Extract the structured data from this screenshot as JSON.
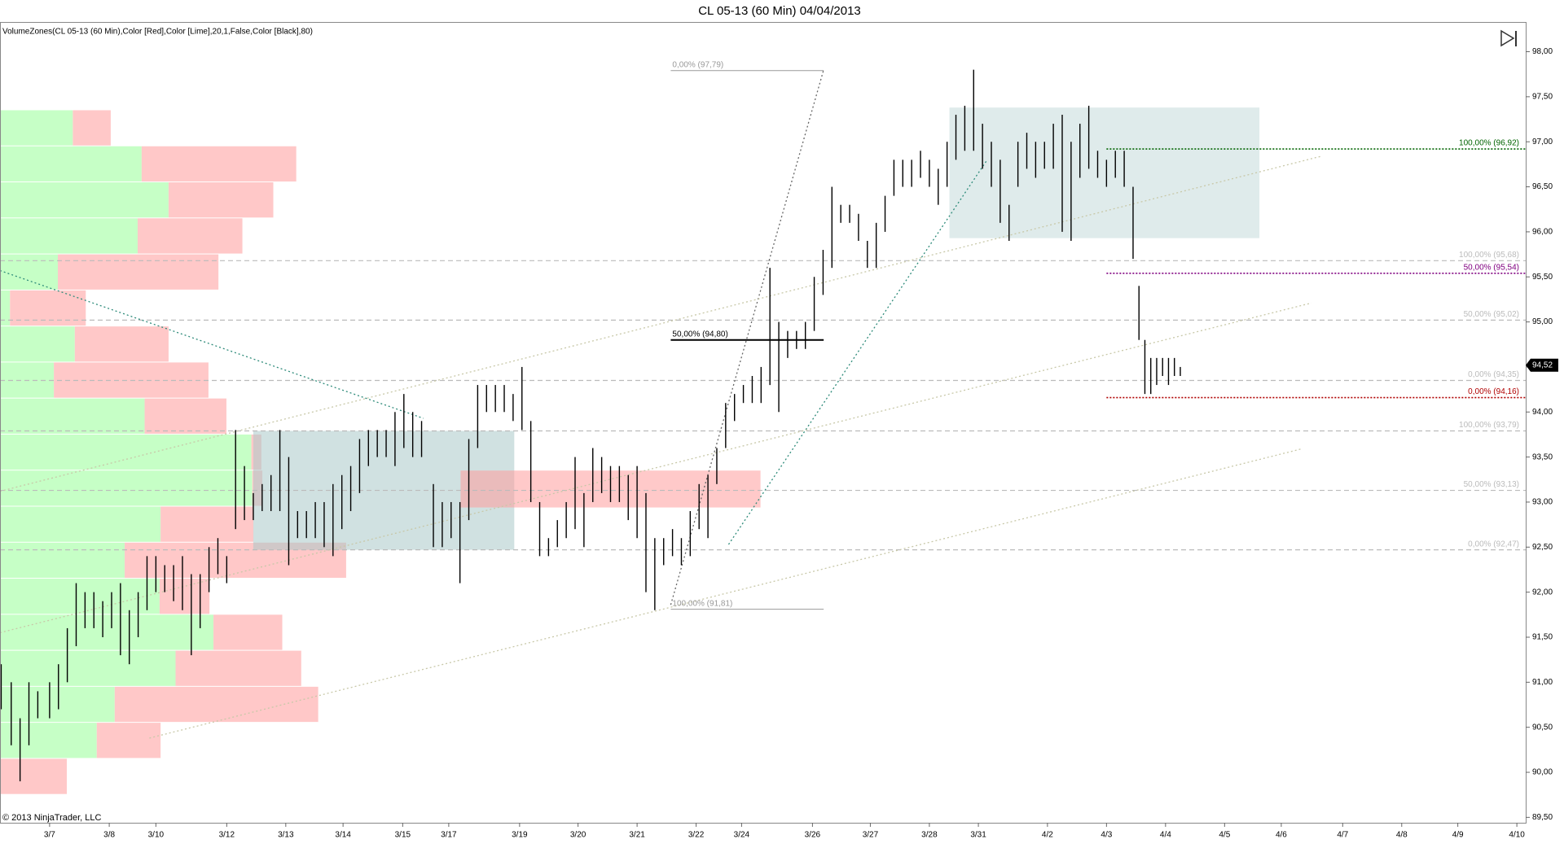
{
  "chart_data": {
    "type": "ohlc",
    "title": "CL 05-13 (60 Min)  04/04/2013",
    "indicator_label": "VolumeZones(CL 05-13 (60 Min),Color [Red],Color [Lime],20,1,False,Color [Black],80)",
    "copyright": "© 2013 NinjaTrader, LLC",
    "color": "#000000",
    "x": [
      -0.82,
      -0.65,
      -0.5,
      -0.35,
      -0.2,
      0.0,
      0.15,
      0.3,
      0.45,
      0.6,
      0.75,
      0.9,
      1.05,
      1.2,
      1.35,
      1.5,
      1.65,
      1.8,
      1.95,
      2.1,
      2.25,
      2.4,
      2.55,
      2.7,
      2.85,
      3.0,
      3.15,
      3.3,
      3.45,
      3.6,
      3.75,
      3.9,
      4.05,
      4.2,
      4.35,
      4.5,
      4.65,
      4.8,
      4.95,
      5.1,
      5.25,
      5.4,
      5.55,
      5.7,
      5.85,
      6.0,
      6.15,
      6.3,
      6.5,
      6.65,
      6.8,
      6.95,
      7.1,
      7.25,
      7.4,
      7.55,
      7.7,
      7.85,
      8.0,
      8.15,
      8.3,
      8.45,
      8.6,
      8.75,
      8.9,
      9.05,
      9.2,
      9.35,
      9.5,
      9.65,
      9.8,
      9.95,
      10.1,
      10.25,
      10.4,
      10.55,
      10.7,
      10.85,
      11.0,
      11.15,
      11.3,
      11.45,
      11.6,
      11.75,
      11.9,
      12.05,
      12.2,
      12.35,
      12.5,
      12.65,
      12.8,
      12.95,
      13.1,
      13.25,
      13.4,
      13.55,
      13.7,
      13.85,
      14.0,
      14.15,
      14.3,
      14.45,
      14.6,
      14.75,
      14.9,
      15.05,
      15.2,
      15.35,
      15.5,
      15.65,
      15.8,
      15.95,
      16.1,
      16.25,
      16.4,
      16.55,
      16.7,
      16.85,
      17.0,
      17.15,
      17.3,
      17.45,
      17.6,
      17.75,
      17.9,
      18.05,
      18.2,
      18.35,
      18.45,
      18.55,
      18.65,
      18.75,
      18.85,
      18.95,
      19.05,
      19.15
    ],
    "high": [
      91.2,
      91.0,
      90.6,
      91.0,
      90.9,
      91.0,
      91.2,
      91.6,
      92.1,
      92.0,
      92.0,
      91.9,
      92.0,
      92.1,
      91.8,
      92.0,
      92.4,
      92.4,
      92.3,
      92.3,
      92.4,
      92.2,
      92.2,
      92.5,
      92.6,
      92.4,
      93.8,
      93.4,
      93.1,
      93.2,
      93.3,
      93.8,
      93.5,
      92.9,
      92.9,
      93.0,
      93.0,
      93.2,
      93.3,
      93.4,
      93.7,
      93.8,
      93.8,
      93.8,
      94.0,
      94.2,
      94.0,
      93.9,
      93.2,
      93.0,
      93.0,
      93.0,
      93.7,
      94.3,
      94.3,
      94.3,
      94.3,
      94.2,
      94.5,
      93.9,
      93.0,
      92.6,
      92.8,
      93.0,
      93.5,
      93.1,
      93.6,
      93.5,
      93.4,
      93.4,
      93.3,
      93.4,
      93.1,
      92.6,
      92.6,
      92.7,
      92.6,
      92.9,
      93.2,
      93.3,
      93.6,
      94.1,
      94.2,
      94.3,
      94.4,
      94.5,
      95.6,
      95.0,
      94.9,
      94.9,
      95.0,
      95.5,
      95.8,
      96.5,
      96.3,
      96.3,
      96.2,
      95.9,
      96.1,
      96.4,
      96.8,
      96.8,
      96.8,
      96.9,
      96.8,
      96.7,
      97.0,
      97.3,
      97.4,
      97.8,
      97.2,
      97.0,
      96.8,
      96.3,
      97.0,
      97.1,
      97.0,
      97.0,
      97.2,
      97.3,
      97.0,
      97.2,
      97.4,
      96.9,
      96.8,
      96.9,
      96.9,
      96.5,
      95.4,
      94.8,
      94.6,
      94.6,
      94.6,
      94.6,
      94.6,
      94.5
    ],
    "low": [
      90.7,
      90.3,
      89.9,
      90.3,
      90.6,
      90.6,
      90.7,
      91.0,
      91.4,
      91.6,
      91.6,
      91.5,
      91.6,
      91.3,
      91.2,
      91.5,
      91.8,
      92.0,
      92.0,
      91.9,
      91.8,
      91.3,
      91.6,
      92.0,
      92.2,
      92.1,
      92.7,
      92.8,
      92.8,
      92.9,
      92.9,
      92.9,
      92.3,
      92.6,
      92.6,
      92.6,
      92.5,
      92.4,
      92.7,
      92.9,
      93.1,
      93.4,
      93.5,
      93.5,
      93.4,
      93.6,
      93.5,
      93.5,
      92.5,
      92.5,
      92.6,
      92.1,
      92.8,
      93.6,
      94.0,
      94.0,
      94.0,
      93.9,
      93.8,
      93.0,
      92.4,
      92.4,
      92.5,
      92.6,
      92.7,
      92.5,
      93.0,
      93.1,
      93.0,
      93.0,
      92.8,
      92.6,
      92.0,
      91.8,
      92.3,
      92.4,
      92.3,
      92.4,
      92.7,
      92.6,
      93.2,
      93.6,
      93.9,
      94.1,
      94.1,
      94.1,
      94.3,
      94.0,
      94.6,
      94.7,
      94.7,
      94.9,
      95.3,
      95.6,
      96.1,
      96.1,
      95.9,
      95.6,
      95.6,
      96.0,
      96.4,
      96.5,
      96.5,
      96.6,
      96.5,
      96.3,
      96.5,
      96.8,
      96.9,
      96.9,
      96.7,
      96.5,
      96.1,
      95.9,
      96.5,
      96.7,
      96.6,
      96.7,
      96.7,
      96.0,
      95.9,
      96.6,
      96.7,
      96.6,
      96.5,
      96.6,
      96.5,
      95.7,
      94.8,
      94.2,
      94.2,
      94.3,
      94.4,
      94.3,
      94.4,
      94.4
    ],
    "xlim": [
      -0.84,
      25.0
    ],
    "ylim": [
      89.44,
      98.33
    ],
    "xticks": [
      {
        "value": 0,
        "label": "3/7"
      },
      {
        "value": 1.01,
        "label": "3/8"
      },
      {
        "value": 1.8,
        "label": "3/10"
      },
      {
        "value": 3.0,
        "label": "3/12"
      },
      {
        "value": 4.0,
        "label": "3/13"
      },
      {
        "value": 4.97,
        "label": "3/14"
      },
      {
        "value": 5.98,
        "label": "3/15"
      },
      {
        "value": 6.76,
        "label": "3/17"
      },
      {
        "value": 7.96,
        "label": "3/19"
      },
      {
        "value": 8.95,
        "label": "3/20"
      },
      {
        "value": 9.95,
        "label": "3/21"
      },
      {
        "value": 10.95,
        "label": "3/22"
      },
      {
        "value": 11.72,
        "label": "3/24"
      },
      {
        "value": 12.92,
        "label": "3/26"
      },
      {
        "value": 13.9,
        "label": "3/27"
      },
      {
        "value": 14.9,
        "label": "3/28"
      },
      {
        "value": 15.73,
        "label": "3/31"
      },
      {
        "value": 16.9,
        "label": "4/2"
      },
      {
        "value": 17.9,
        "label": "4/3"
      },
      {
        "value": 18.9,
        "label": "4/4"
      },
      {
        "value": 19.9,
        "label": "4/5"
      },
      {
        "value": 20.86,
        "label": "4/6"
      },
      {
        "value": 21.9,
        "label": "4/7"
      },
      {
        "value": 22.9,
        "label": "4/8"
      },
      {
        "value": 23.85,
        "label": "4/9"
      },
      {
        "value": 24.85,
        "label": "4/10"
      }
    ],
    "yticks": [
      {
        "value": 89.5,
        "label": "89,50"
      },
      {
        "value": 90.0,
        "label": "90,00"
      },
      {
        "value": 90.5,
        "label": "90,50"
      },
      {
        "value": 91.0,
        "label": "91,00"
      },
      {
        "value": 91.5,
        "label": "91,50"
      },
      {
        "value": 92.0,
        "label": "92,00"
      },
      {
        "value": 92.5,
        "label": "92,50"
      },
      {
        "value": 93.0,
        "label": "93,00"
      },
      {
        "value": 93.5,
        "label": "93,50"
      },
      {
        "value": 94.0,
        "label": "94,00"
      },
      {
        "value": 94.5,
        "label": "94,50"
      },
      {
        "value": 95.0,
        "label": "95,00"
      },
      {
        "value": 95.5,
        "label": "95,50"
      },
      {
        "value": 96.0,
        "label": "96,00"
      },
      {
        "value": 96.5,
        "label": "96,50"
      },
      {
        "value": 97.0,
        "label": "97,00"
      },
      {
        "value": 97.5,
        "label": "97,50"
      },
      {
        "value": 98.0,
        "label": "98,00"
      }
    ],
    "volume_zones": {
      "bounds": [
        89.75,
        90.15,
        90.55,
        90.95,
        91.35,
        91.75,
        92.15,
        92.55,
        92.95,
        93.35,
        93.75,
        94.15,
        94.55,
        94.95,
        95.35,
        95.75,
        96.15,
        96.55,
        96.95,
        97.35
      ],
      "buy": [
        0,
        97,
        115,
        176,
        214,
        160,
        125,
        161,
        253,
        252,
        145,
        54,
        75,
        10,
        58,
        138,
        169,
        142,
        73
      ],
      "sell": [
        67,
        64,
        204,
        126,
        69,
        50,
        222,
        93,
        10,
        10,
        82,
        155,
        94,
        76,
        161,
        105,
        105,
        155,
        38
      ],
      "buy_color": "#c6ffc6",
      "sell_color": "#ffc8c8"
    },
    "rectangles": [
      {
        "x": [
          15.24,
          20.49
        ],
        "y": [
          95.93,
          97.38
        ],
        "color": "#c5dada"
      },
      {
        "x": [
          3.45,
          7.87
        ],
        "y": [
          92.47,
          93.79
        ],
        "color": "#a9c9c9"
      },
      {
        "x": [
          6.96,
          12.04
        ],
        "y": [
          92.94,
          93.35
        ],
        "color": "#ff9c9c"
      }
    ],
    "trend_lines": [
      {
        "x": [
          -0.84,
          6.33
        ],
        "y": [
          95.57,
          93.93
        ],
        "color": "#2e8b7a"
      },
      {
        "x": [
          11.5,
          15.88
        ],
        "y": [
          92.53,
          96.8
        ],
        "color": "#2e8b7a"
      },
      {
        "x": [
          10.52,
          13.11
        ],
        "y": [
          91.86,
          97.8
        ],
        "color": "#666666"
      },
      {
        "x": [
          -0.84,
          21.54
        ],
        "y": [
          93.12,
          96.84
        ],
        "color": "#c8c8a8"
      },
      {
        "x": [
          -0.84,
          21.37
        ],
        "y": [
          91.55,
          95.21
        ],
        "color": "#c8c8a8"
      },
      {
        "x": [
          1.69,
          21.2
        ],
        "y": [
          90.38,
          93.59
        ],
        "color": "#c8c8a8"
      }
    ],
    "levels": [
      {
        "label": "100,00% (96,92)",
        "value": 96.92,
        "x_start": 17.9,
        "color": "#006400"
      },
      {
        "label": "100,00% (95,68)",
        "value": 95.68,
        "x_start": -0.84,
        "color": "#bbbbbb"
      },
      {
        "label": "50,00% (95,54)",
        "value": 95.54,
        "x_start": 17.9,
        "color": "#800080"
      },
      {
        "label": "50,00% (95,02)",
        "value": 95.02,
        "x_start": -0.84,
        "color": "#bbbbbb"
      },
      {
        "label": "0,00% (94,35)",
        "value": 94.35,
        "x_start": -0.84,
        "color": "#bbbbbb"
      },
      {
        "label": "0,00% (94,16)",
        "value": 94.16,
        "x_start": 17.9,
        "color": "#b00000"
      },
      {
        "label": "100,00% (93,79)",
        "value": 93.79,
        "x_start": -0.84,
        "color": "#bbbbbb"
      },
      {
        "label": "50,00% (93,13)",
        "value": 93.13,
        "x_start": -0.84,
        "color": "#bbbbbb"
      },
      {
        "label": "0,00% (92,47)",
        "value": 92.47,
        "x_start": -0.84,
        "color": "#bbbbbb"
      }
    ],
    "fib": {
      "x": [
        10.52,
        13.11
      ],
      "levels": [
        {
          "label": "0,00% (97,79)",
          "value": 97.79,
          "color": "#999999"
        },
        {
          "label": "50,00% (94,80)",
          "value": 94.8,
          "color": "#000000"
        },
        {
          "label": "100,00% (91,81)",
          "value": 91.81,
          "color": "#999999"
        }
      ]
    },
    "last_price": {
      "value": 94.52,
      "label": "94,52"
    }
  }
}
